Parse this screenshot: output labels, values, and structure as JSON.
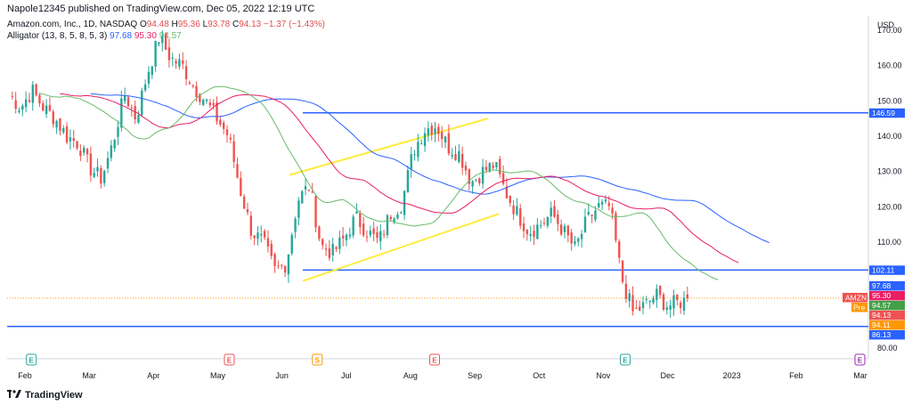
{
  "header": {
    "published_by": "Napole12345 published on TradingView.com, Dec 05, 2022 12:19 UTC"
  },
  "legend": {
    "symbol": "Amazon.com, Inc., 1D, NASDAQ",
    "ohlc": {
      "o_label": "O",
      "o": "94.48",
      "h_label": "H",
      "h": "95.36",
      "l_label": "L",
      "l": "93.78",
      "c_label": "C",
      "c": "94.13",
      "change": "−1.37 (−1.43%)"
    },
    "alligator_label": "Alligator (13, 8, 5, 8, 5, 3)",
    "jaw": "97.68",
    "teeth": "95.30",
    "lips": "94.57"
  },
  "footer": {
    "brand": "TradingView"
  },
  "colors": {
    "up": "#26a69a",
    "down": "#ef5350",
    "jaw": "#2962ff",
    "teeth": "#e91e63",
    "lips": "#66bb6a",
    "hline": "#2962ff",
    "channel": "#ffeb3b",
    "pre": "#ff9800",
    "amzn": "#ef5350"
  },
  "chart_data": {
    "type": "candlestick",
    "currency": "USD",
    "y_ticks": [
      80,
      90,
      100,
      110,
      120,
      130,
      140,
      150,
      160,
      170
    ],
    "y_tick_labels": [
      "80.00",
      "",
      "",
      "110.00",
      "120.00",
      "130.00",
      "140.00",
      "150.00",
      "160.00",
      "170.00"
    ],
    "ylim": [
      77,
      174
    ],
    "x_labels": [
      "Feb",
      "Mar",
      "Apr",
      "May",
      "Jun",
      "Jul",
      "Aug",
      "Sep",
      "Oct",
      "Nov",
      "Dec",
      "2023",
      "Feb",
      "Mar"
    ],
    "weekly_close": [
      152,
      148,
      153,
      148,
      145,
      140,
      138,
      131,
      128,
      138,
      152,
      145,
      158,
      168,
      162,
      160,
      154,
      150,
      145,
      140,
      125,
      113,
      110,
      102,
      104,
      122,
      126,
      109,
      107,
      111,
      117,
      113,
      110,
      118,
      121,
      136,
      142,
      143,
      137,
      135,
      127,
      130,
      132,
      124,
      118,
      113,
      115,
      118,
      113,
      108,
      116,
      120,
      120,
      100,
      90,
      92,
      95,
      92,
      93,
      94
    ],
    "alligator": {
      "jaw_last": 97.68,
      "teeth_last": 95.3,
      "lips_last": 94.57
    },
    "horizontal_levels": [
      146.59,
      102.11,
      86.13
    ],
    "channel": {
      "upper": [
        [
          126,
          129
        ],
        [
          153,
          145
        ]
      ],
      "lower": [
        [
          129,
          99
        ],
        [
          153,
          118
        ]
      ]
    },
    "price_labels": [
      {
        "text": "146.59",
        "value": 146.59,
        "color": "#2962ff"
      },
      {
        "text": "102.11",
        "value": 102.11,
        "color": "#2962ff"
      },
      {
        "text": "97.68",
        "value": 97.68,
        "color": "#2962ff"
      },
      {
        "text": "95.30",
        "value": 95.3,
        "color": "#e91e63"
      },
      {
        "text": "94.57",
        "value": 94.57,
        "color": "#43a047"
      },
      {
        "text": "94.13",
        "value": 94.13,
        "color": "#ef5350"
      },
      {
        "text": "94.11",
        "value": 94.11,
        "color": "#ff9800"
      },
      {
        "text": "86.13",
        "value": 86.13,
        "color": "#2962ff"
      }
    ],
    "symbol_tag": "AMZN",
    "pre_tag": "Pre",
    "events": [
      {
        "label": "E",
        "week": 1.5,
        "color": "#26a69a"
      },
      {
        "label": "E",
        "week": 15,
        "color": "#ef5350"
      },
      {
        "label": "S",
        "week": 21,
        "color": "#ff9800"
      },
      {
        "label": "E",
        "week": 29,
        "color": "#ef5350"
      },
      {
        "label": "E",
        "week": 42,
        "color": "#26a69a"
      },
      {
        "label": "E",
        "week": 58,
        "color": "#9c27b0"
      }
    ]
  }
}
